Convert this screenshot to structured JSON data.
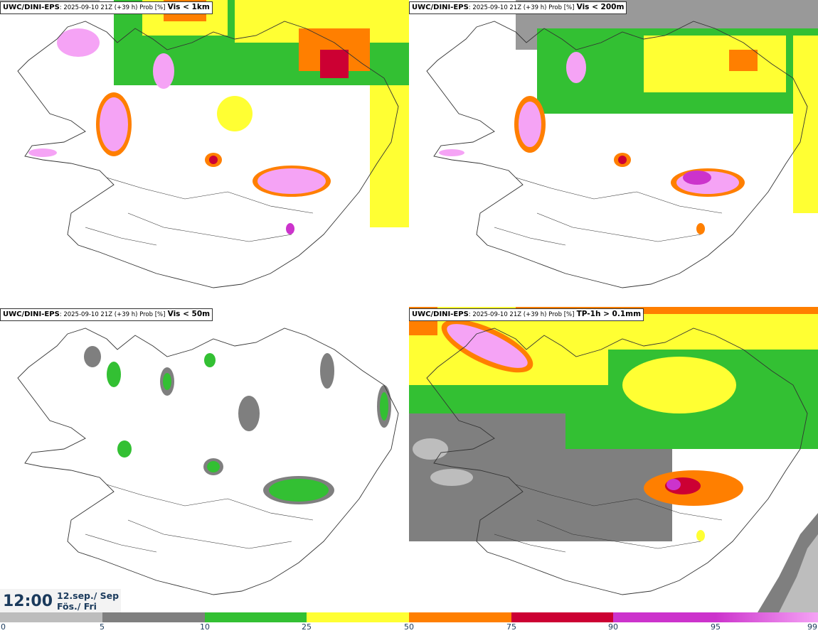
{
  "panels": [
    {
      "model": "UWC/DINI-EPS",
      "meta": ": 2025-09-10 21Z (+39 h) Prob [%]",
      "variable": "Vis < 1km"
    },
    {
      "model": "UWC/DINI-EPS",
      "meta": ": 2025-09-10 21Z (+39 h) Prob [%]",
      "variable": "Vis < 200m"
    },
    {
      "model": "UWC/DINI-EPS",
      "meta": ": 2025-09-10 21Z (+39 h) Prob [%]",
      "variable": "Vis < 50m"
    },
    {
      "model": "UWC/DINI-EPS",
      "meta": ": 2025-09-10 21Z (+39 h) Prob [%]",
      "variable": "TP-1h > 0.1mm"
    }
  ],
  "valid_time": {
    "time": "12:00",
    "date_line1": "12.sep./ Sep",
    "date_line2": "Fös./ Fri"
  },
  "legend": {
    "ticks": [
      "0",
      "5",
      "10",
      "25",
      "50",
      "75",
      "90",
      "95",
      "99"
    ],
    "colors": [
      "#ffffff",
      "#bdbdbd",
      "#7f7f7f",
      "#33c033",
      "#ffff33",
      "#ff7f00",
      "#cc0033",
      "#cc33cc",
      "#f5a3f5"
    ]
  },
  "palette": {
    "gray_light": "#bdbdbd",
    "gray_dark": "#7f7f7f",
    "green": "#33c033",
    "yellow": "#ffff33",
    "orange": "#ff7f00",
    "red": "#cc0033",
    "magenta": "#cc33cc",
    "pink": "#f5a3f5",
    "title_blue": "#1a3a5c"
  }
}
